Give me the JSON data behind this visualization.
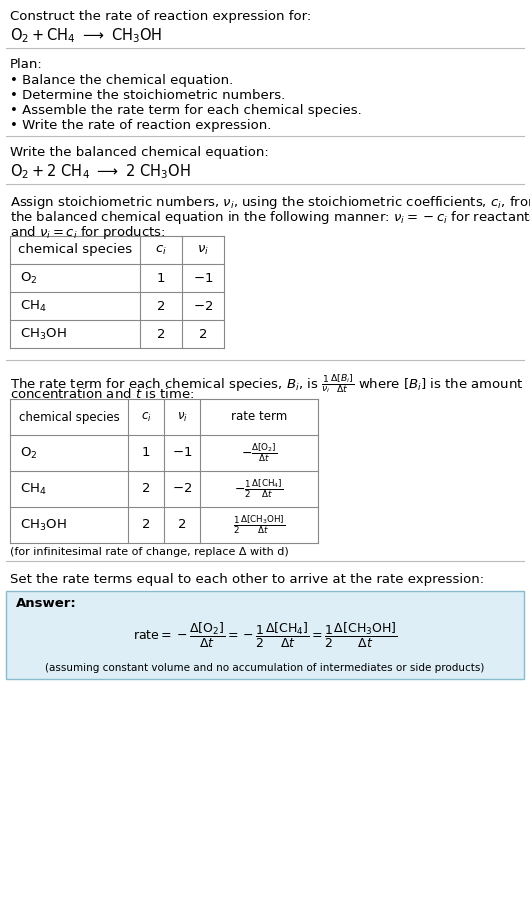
{
  "bg_color": "#ffffff",
  "text_color": "#000000",
  "answer_bg": "#ddeef6",
  "answer_border": "#88bbcc",
  "title_line1": "Construct the rate of reaction expression for:",
  "plan_header": "Plan:",
  "plan_items": [
    "• Balance the chemical equation.",
    "• Determine the stoichiometric numbers.",
    "• Assemble the rate term for each chemical species.",
    "• Write the rate of reaction expression."
  ],
  "balanced_header": "Write the balanced chemical equation:",
  "stoich_intro1": "Assign stoichiometric numbers, $\\nu_i$, using the stoichiometric coefficients, $c_i$, from",
  "stoich_intro2": "the balanced chemical equation in the following manner: $\\nu_i = -c_i$ for reactants",
  "stoich_intro3": "and $\\nu_i = c_i$ for products:",
  "table1_col1_header": "chemical species",
  "table1_col2_header": "$c_i$",
  "table1_col3_header": "$\\nu_i$",
  "table1_rows": [
    [
      "$\\mathrm{O_2}$",
      "1",
      "$-1$"
    ],
    [
      "$\\mathrm{CH_4}$",
      "2",
      "$-2$"
    ],
    [
      "$\\mathrm{CH_3OH}$",
      "2",
      "2"
    ]
  ],
  "rate_intro1": "The rate term for each chemical species, $B_i$, is $\\frac{1}{\\nu_i}\\frac{\\Delta[B_i]}{\\Delta t}$ where $[B_i]$ is the amount",
  "rate_intro2": "concentration and $t$ is time:",
  "table2_col1_header": "chemical species",
  "table2_col2_header": "$c_i$",
  "table2_col3_header": "$\\nu_i$",
  "table2_col4_header": "rate term",
  "table2_rows": [
    [
      "$\\mathrm{O_2}$",
      "1",
      "$-1$",
      "$-\\frac{\\Delta[\\mathrm{O_2}]}{\\Delta t}$"
    ],
    [
      "$\\mathrm{CH_4}$",
      "2",
      "$-2$",
      "$-\\frac{1}{2}\\frac{\\Delta[\\mathrm{CH_4}]}{\\Delta t}$"
    ],
    [
      "$\\mathrm{CH_3OH}$",
      "2",
      "2",
      "$\\frac{1}{2}\\frac{\\Delta[\\mathrm{CH_3OH}]}{\\Delta t}$"
    ]
  ],
  "infinitesimal_note": "(for infinitesimal rate of change, replace Δ with d)",
  "set_equal_text": "Set the rate terms equal to each other to arrive at the rate expression:",
  "answer_label": "Answer:",
  "answer_note": "(assuming constant volume and no accumulation of intermediates or side products)"
}
